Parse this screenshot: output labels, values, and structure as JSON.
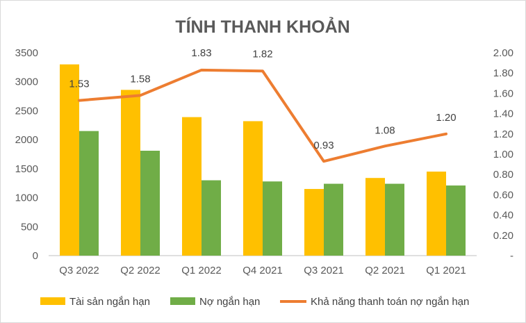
{
  "chart_data": {
    "type": "bar",
    "title": "TÍNH THANH KHOẢN",
    "categories": [
      "Q3 2022",
      "Q2 2022",
      "Q1 2022",
      "Q4 2021",
      "Q3 2021",
      "Q2 2021",
      "Q1 2021"
    ],
    "series": [
      {
        "name": "Tài sản ngắn hạn",
        "type": "bar",
        "axis": "left",
        "color": "#FFC000",
        "values": [
          3300,
          2860,
          2390,
          2320,
          1150,
          1340,
          1450
        ]
      },
      {
        "name": "Nợ ngắn hạn",
        "type": "bar",
        "axis": "left",
        "color": "#70AD47",
        "values": [
          2150,
          1810,
          1300,
          1280,
          1240,
          1240,
          1210
        ]
      },
      {
        "name": "Khả năng thanh toán nợ ngắn hạn",
        "type": "line",
        "axis": "right",
        "color": "#ED7D31",
        "values": [
          1.53,
          1.58,
          1.83,
          1.82,
          0.93,
          1.08,
          1.2
        ],
        "labels": [
          "1.53",
          "1.58",
          "1.83",
          "1.82",
          "0.93",
          "1.08",
          "1.20"
        ]
      }
    ],
    "y_left": {
      "ylim": [
        0,
        3500
      ],
      "ticks": [
        0,
        500,
        1000,
        1500,
        2000,
        2500,
        3000,
        3500
      ],
      "tick_labels": [
        "0",
        "500",
        "1000",
        "1500",
        "2000",
        "2500",
        "3000",
        "3500"
      ]
    },
    "y_right": {
      "ylim": [
        0,
        2.0
      ],
      "ticks": [
        0,
        0.2,
        0.4,
        0.6,
        0.8,
        1.0,
        1.2,
        1.4,
        1.6,
        1.8,
        2.0
      ],
      "tick_labels": [
        "-",
        "0.20",
        "0.40",
        "0.60",
        "0.80",
        "1.00",
        "1.20",
        "1.40",
        "1.60",
        "1.80",
        "2.00"
      ]
    },
    "grid": false,
    "legend_position": "bottom"
  }
}
